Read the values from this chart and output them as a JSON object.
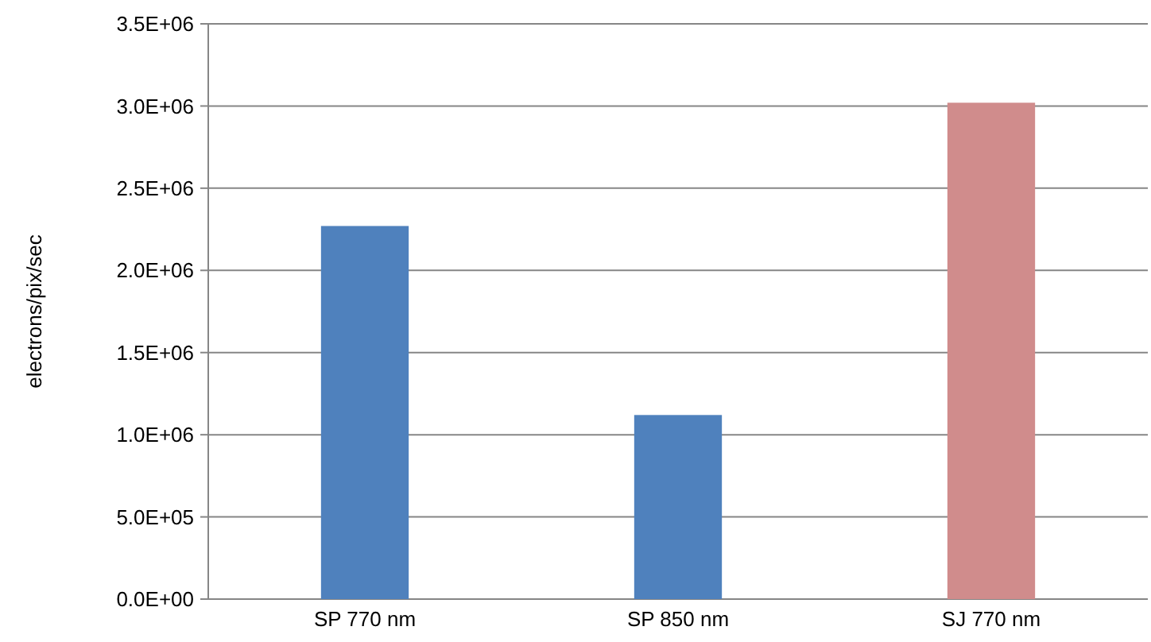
{
  "chart_data": {
    "type": "bar",
    "ylabel": "electrons/pix/sec",
    "categories": [
      "SP 770 nm",
      "SP 850 nm",
      "SJ 770 nm"
    ],
    "values": [
      2270000,
      1120000,
      3020000
    ],
    "colors": [
      "#4f81bd",
      "#4f81bd",
      "#d08c8c"
    ],
    "ylim": [
      0,
      3500000
    ],
    "yticks": [
      {
        "value": 0,
        "label": "0.0E+00"
      },
      {
        "value": 500000,
        "label": "5.0E+05"
      },
      {
        "value": 1000000,
        "label": "1.0E+06"
      },
      {
        "value": 1500000,
        "label": "1.5E+06"
      },
      {
        "value": 2000000,
        "label": "2.0E+06"
      },
      {
        "value": 2500000,
        "label": "2.5E+06"
      },
      {
        "value": 3000000,
        "label": "3.0E+06"
      },
      {
        "value": 3500000,
        "label": "3.5E+06"
      }
    ],
    "grid": "y"
  }
}
